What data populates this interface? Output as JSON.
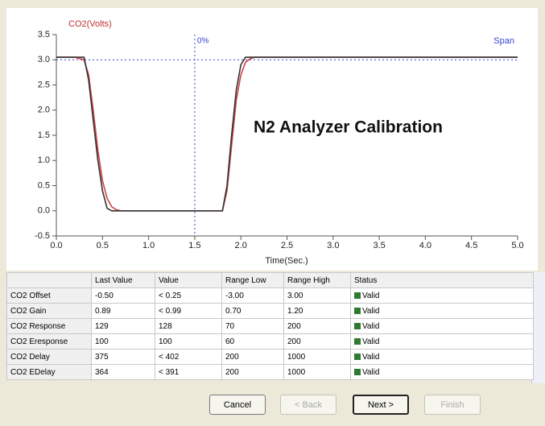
{
  "chart_data": {
    "type": "line",
    "ylabel": "CO2(Volts)",
    "xlabel": "Time(Sec.)",
    "overlay_title": "N2 Analyzer Calibration",
    "x": [
      0,
      0.2,
      0.3,
      0.35,
      0.4,
      0.45,
      0.5,
      0.55,
      0.6,
      0.65,
      0.7,
      1.8,
      1.85,
      1.9,
      1.95,
      2.0,
      2.05,
      2.1,
      2.15,
      2.2,
      5.0
    ],
    "series": [
      {
        "color": "#d04040",
        "values": [
          3.05,
          3.05,
          3.0,
          2.7,
          2.0,
          1.2,
          0.6,
          0.25,
          0.08,
          0.02,
          0,
          0,
          0.4,
          1.3,
          2.2,
          2.7,
          2.95,
          3.02,
          3.05,
          3.05,
          3.05
        ]
      },
      {
        "color": "#333333",
        "values": [
          3.05,
          3.05,
          3.05,
          2.6,
          1.8,
          1.0,
          0.4,
          0.05,
          0,
          0,
          0,
          0,
          0.5,
          1.5,
          2.4,
          2.9,
          3.05,
          3.05,
          3.05,
          3.05,
          3.05
        ]
      }
    ],
    "annotations": [
      {
        "text": "0%",
        "x": 1.5
      },
      {
        "text": "Span",
        "y": 3.0
      }
    ],
    "xlim": [
      0,
      5
    ],
    "xticks": [
      {
        "value": 0,
        "label": "0.0"
      },
      0.5,
      {
        "value": 1,
        "label": "1.0"
      },
      1.5,
      {
        "value": 2,
        "label": "2.0"
      },
      2.5,
      {
        "value": 3,
        "label": "3.0"
      },
      3.5,
      {
        "value": 4,
        "label": "4.0"
      },
      4.5,
      {
        "value": 5,
        "label": "5.0"
      }
    ],
    "ylim": [
      -0.5,
      3.5
    ],
    "yticks": [
      -0.5,
      {
        "value": 0,
        "label": "0.0"
      },
      0.5,
      {
        "value": 1,
        "label": "1.0"
      },
      1.5,
      {
        "value": 2,
        "label": "2.0"
      },
      2.5,
      {
        "value": 3,
        "label": "3.0"
      },
      3.5
    ]
  },
  "table": {
    "header": [
      "Last Value",
      "Value",
      "Range Low",
      "Range High",
      "Status"
    ],
    "rows": [
      [
        "CO2 Offset",
        "-0.50",
        "< 0.25",
        "-3.00",
        "3.00",
        "Valid"
      ],
      [
        "CO2 Gain",
        "0.89",
        "< 0.99",
        "0.70",
        "1.20",
        "Valid"
      ],
      [
        "CO2 Response",
        "129",
        "128",
        "70",
        "200",
        "Valid"
      ],
      [
        "CO2 Eresponse",
        "100",
        "100",
        "60",
        "200",
        "Valid"
      ],
      [
        "CO2 Delay",
        "375",
        "< 402",
        "200",
        "1000",
        "Valid"
      ],
      [
        "CO2 EDelay",
        "364",
        "< 391",
        "200",
        "1000",
        "Valid"
      ]
    ]
  },
  "buttons": [
    "Cancel",
    "< Back",
    "Next >",
    "Finish"
  ]
}
